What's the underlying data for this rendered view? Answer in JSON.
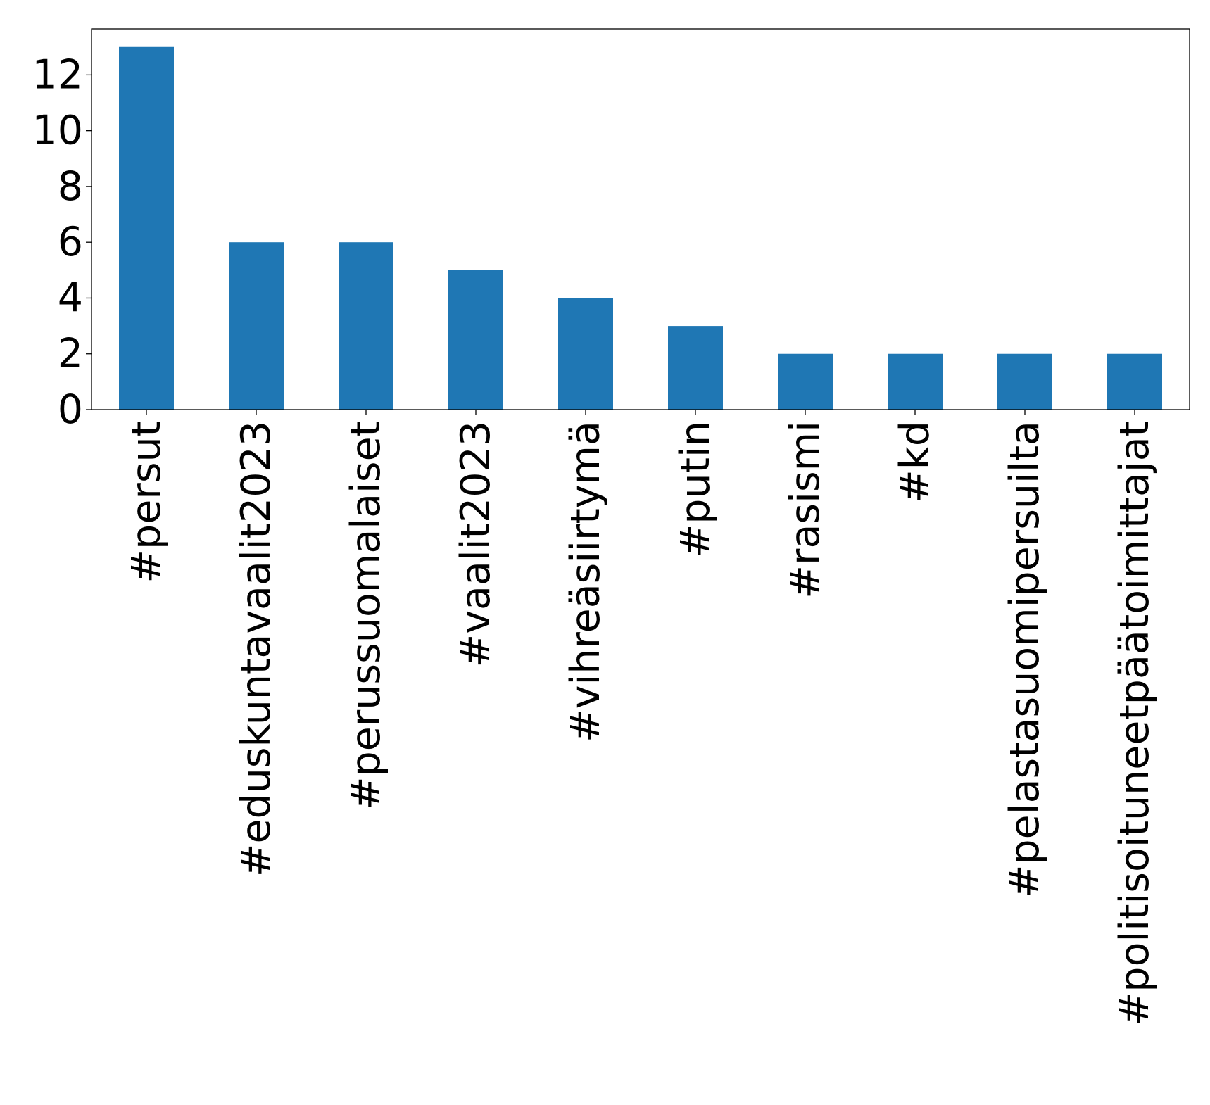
{
  "chart_data": {
    "type": "bar",
    "categories": [
      "#persut",
      "#eduskuntavaalit2023",
      "#perussuomalaiset",
      "#vaalit2023",
      "#vihreäsiirtymä",
      "#putin",
      "#rasismi",
      "#kd",
      "#pelastasuomipersuilta",
      "#politisoituneetpäätoimittajat"
    ],
    "values": [
      13,
      6,
      6,
      5,
      4,
      3,
      2,
      2,
      2,
      2
    ],
    "title": "",
    "xlabel": "",
    "ylabel": "",
    "ylim": [
      0,
      13.65
    ],
    "yticks": [
      0,
      2,
      4,
      6,
      8,
      10,
      12
    ],
    "grid": false,
    "legend": "none",
    "bar_color": "#1f77b4"
  }
}
